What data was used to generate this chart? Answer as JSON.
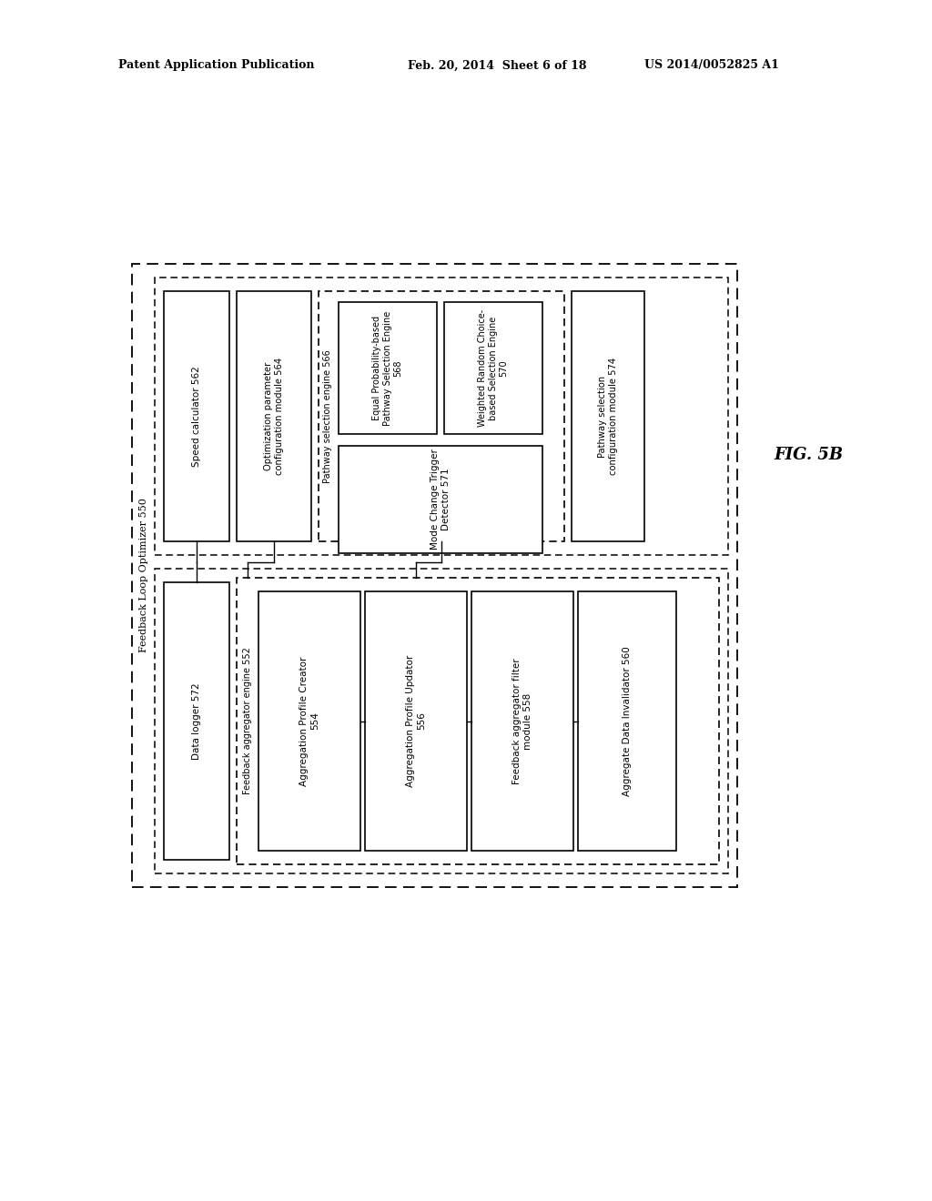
{
  "bg_color": "#ffffff",
  "header_text": "Patent Application Publication",
  "header_date": "Feb. 20, 2014  Sheet 6 of 18",
  "header_patent": "US 2014/0052825 A1",
  "fig_label": "FIG. 5B",
  "outer_label": "Feedback Loop Optimizer 550",
  "speed_calc_label": "Speed calculator 562",
  "opt_param_label": "Optimization parameter\nconfiguration module 564",
  "pse_label": "Pathway selection engine 566",
  "eq_prob_label": "Equal Probability-based\nPathway Selection Engine\n568",
  "weighted_label": "Weighted Random Choice-\nbased Selection Engine\n570",
  "mode_label": "Mode Change Trigger\nDetector 571",
  "pathway_mod_label": "Pathway selection\nconfiguration module 574",
  "data_logger_label": "Data logger 572",
  "fb_agg_eng_label": "Feedback aggregator engine 552",
  "agg_creator_label": "Aggregation Profile Creator\n554",
  "agg_updator_label": "Aggregation Profile Updator\n556",
  "fb_filter_label": "Feedback aggregator filter\nmodule 558",
  "agg_inv_label": "Aggregate Data Invalidator 560"
}
